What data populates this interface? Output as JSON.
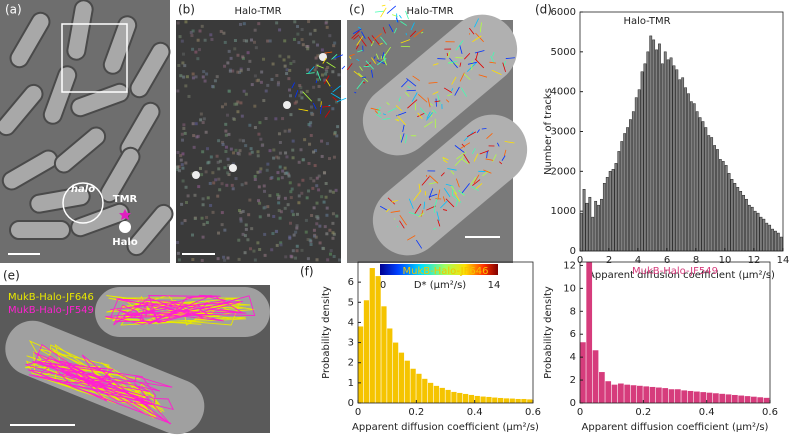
{
  "figure": {
    "panel_labels": [
      "(a)",
      "(b)",
      "(c)",
      "(d)",
      "(e)",
      "(f)"
    ],
    "a": {
      "gene": "halo",
      "dye": "TMR",
      "protein": "Halo"
    },
    "b": {
      "title": "Halo-TMR"
    },
    "c": {
      "title": "Halo-TMR",
      "colorbar_min": "0",
      "colorbar_label": "D* (μm²/s)",
      "colorbar_max": "14"
    },
    "e": {
      "legend": [
        "MukB-Halo-JF646",
        "MukB-Halo-JF549"
      ]
    }
  },
  "chart_data": [
    {
      "type": "histogram",
      "title": "Halo-TMR",
      "xlabel": "Apparent diffusion coefficient (μm²/s)",
      "ylabel": "Number of tracks",
      "color": "#808080",
      "bins": [
        0,
        0.2,
        0.4,
        0.6,
        0.8,
        1,
        1.2,
        1.4,
        1.6,
        1.8,
        2,
        2.2,
        2.4,
        2.6,
        2.8,
        3,
        3.2,
        3.4,
        3.6,
        3.8,
        4,
        4.2,
        4.4,
        4.6,
        4.8,
        5,
        5.2,
        5.4,
        5.6,
        5.8,
        6,
        6.2,
        6.4,
        6.6,
        6.8,
        7,
        7.2,
        7.4,
        7.6,
        7.8,
        8,
        8.2,
        8.4,
        8.6,
        8.8,
        9,
        9.2,
        9.4,
        9.6,
        9.8,
        10,
        10.2,
        10.4,
        10.6,
        10.8,
        11,
        11.2,
        11.4,
        11.6,
        11.8,
        12,
        12.2,
        12.4,
        12.6,
        12.8,
        13,
        13.2,
        13.4,
        13.6,
        13.8,
        14
      ],
      "values": [
        950,
        1550,
        1200,
        1350,
        850,
        1250,
        1150,
        1300,
        1700,
        1850,
        2000,
        2050,
        2200,
        2500,
        2750,
        2950,
        3100,
        3300,
        3500,
        3850,
        4050,
        4500,
        4700,
        5000,
        5400,
        5300,
        5050,
        5200,
        4700,
        5000,
        4800,
        4850,
        4650,
        4550,
        4300,
        4350,
        4100,
        3950,
        3750,
        3700,
        3500,
        3350,
        3250,
        3100,
        2900,
        2850,
        2650,
        2550,
        2300,
        2250,
        2150,
        1950,
        1800,
        1700,
        1600,
        1500,
        1400,
        1300,
        1150,
        1100,
        1000,
        950,
        850,
        800,
        700,
        650,
        550,
        500,
        450,
        350
      ],
      "xlim": [
        0,
        14
      ],
      "xticks": [
        0,
        2,
        4,
        6,
        8,
        10,
        12,
        14
      ],
      "ylim": [
        0,
        6000
      ],
      "yticks": [
        0,
        1000,
        2000,
        3000,
        4000,
        5000,
        6000
      ]
    },
    {
      "type": "histogram",
      "title": "MukB-Halo-JF646",
      "xlabel": "Apparent diffusion coefficient (μm²/s)",
      "ylabel": "Probability density",
      "color": "#f5c400",
      "bins": [
        0,
        0.02,
        0.04,
        0.06,
        0.08,
        0.1,
        0.12,
        0.14,
        0.16,
        0.18,
        0.2,
        0.22,
        0.24,
        0.26,
        0.28,
        0.3,
        0.32,
        0.34,
        0.36,
        0.38,
        0.4,
        0.42,
        0.44,
        0.46,
        0.48,
        0.5,
        0.52,
        0.54,
        0.56,
        0.58,
        0.6
      ],
      "values": [
        3.8,
        5.1,
        6.7,
        6.3,
        4.8,
        3.7,
        3.0,
        2.5,
        2.1,
        1.7,
        1.45,
        1.2,
        1.0,
        0.85,
        0.75,
        0.65,
        0.55,
        0.5,
        0.45,
        0.4,
        0.35,
        0.32,
        0.3,
        0.27,
        0.25,
        0.23,
        0.22,
        0.2,
        0.2,
        0.18
      ],
      "xlim": [
        0,
        0.6
      ],
      "xticks": [
        0,
        0.2,
        0.4,
        0.6
      ],
      "ylim": [
        0,
        7
      ],
      "yticks": [
        0,
        1,
        2,
        3,
        4,
        5,
        6
      ]
    },
    {
      "type": "histogram",
      "title": "MukB-Halo-JF549",
      "xlabel": "Apparent diffusion coefficient (μm²/s)",
      "ylabel": "Probability density",
      "color": "#d63c7c",
      "bins": [
        0,
        0.02,
        0.04,
        0.06,
        0.08,
        0.1,
        0.12,
        0.14,
        0.16,
        0.18,
        0.2,
        0.22,
        0.24,
        0.26,
        0.28,
        0.3,
        0.32,
        0.34,
        0.36,
        0.38,
        0.4,
        0.42,
        0.44,
        0.46,
        0.48,
        0.5,
        0.52,
        0.54,
        0.56,
        0.58,
        0.6
      ],
      "values": [
        5.3,
        12.3,
        4.6,
        2.7,
        1.9,
        1.6,
        1.7,
        1.6,
        1.55,
        1.5,
        1.45,
        1.4,
        1.35,
        1.3,
        1.2,
        1.2,
        1.1,
        1.05,
        1.0,
        0.95,
        0.9,
        0.85,
        0.8,
        0.75,
        0.7,
        0.65,
        0.6,
        0.55,
        0.5,
        0.45
      ],
      "xlim": [
        0,
        0.6
      ],
      "xticks": [
        0,
        0.2,
        0.4,
        0.6
      ],
      "ylim": [
        0,
        12.3
      ],
      "yticks": [
        0,
        2,
        4,
        6,
        8,
        10,
        12
      ]
    }
  ]
}
